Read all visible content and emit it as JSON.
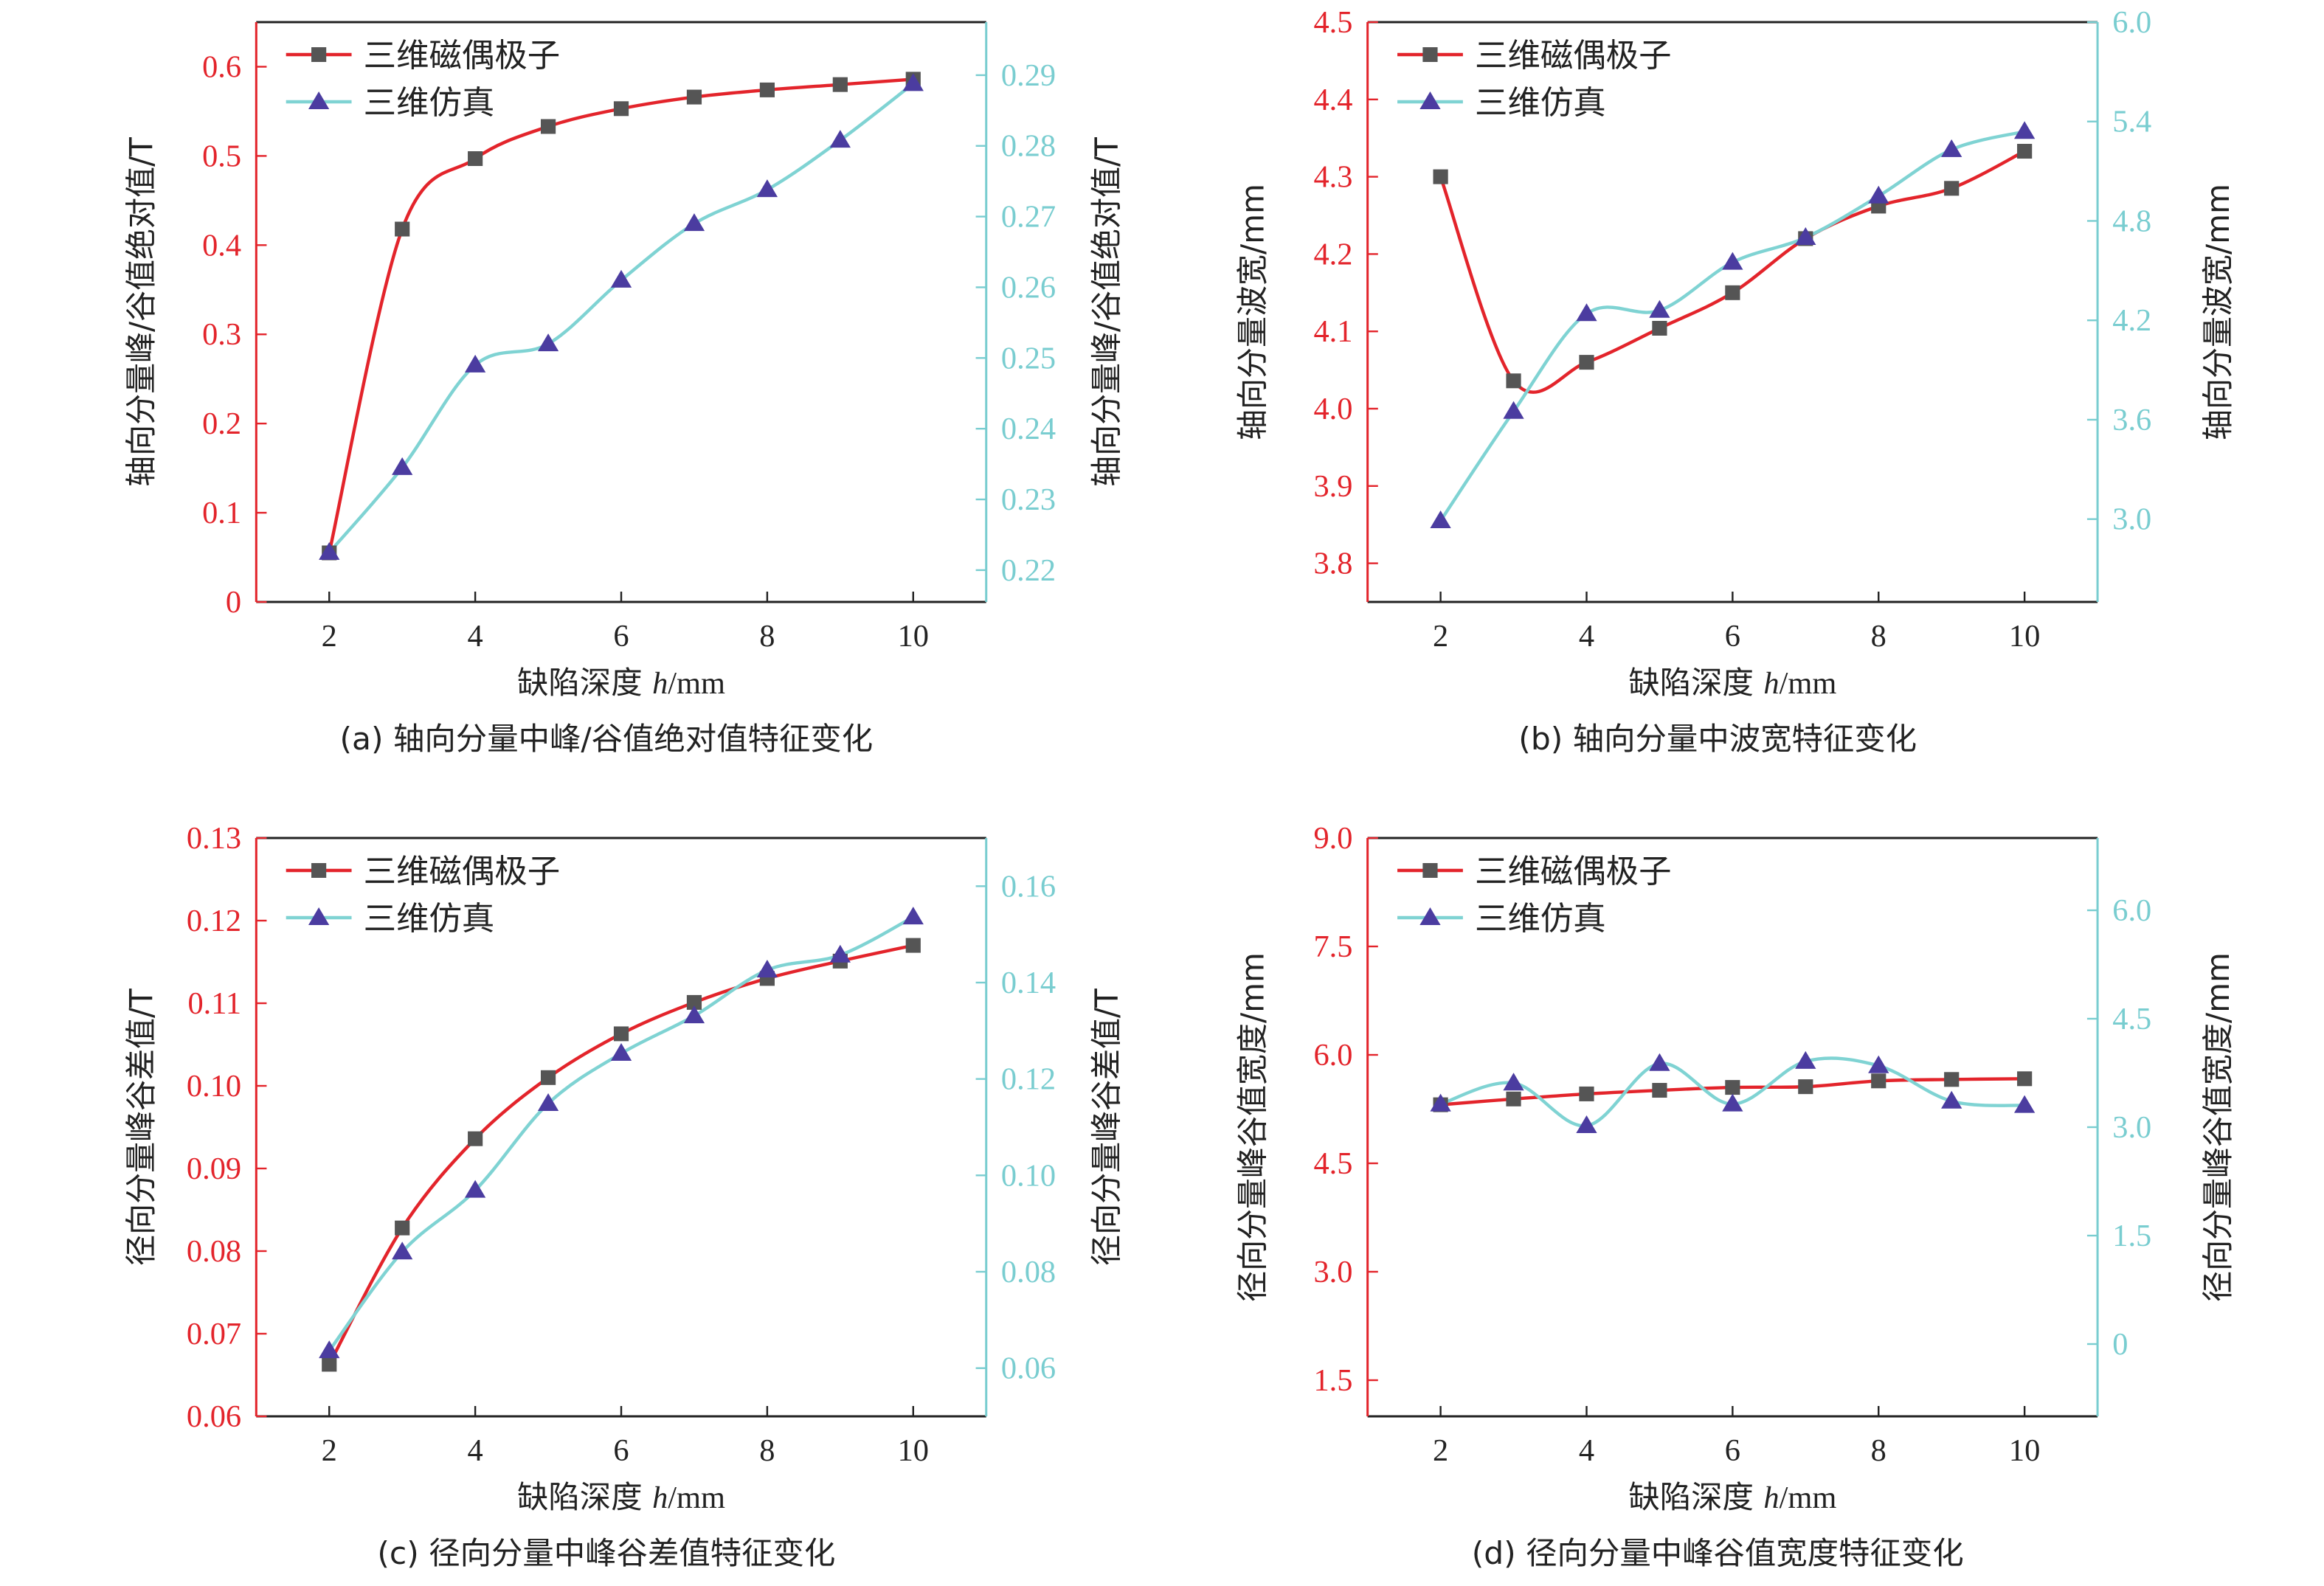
{
  "colors": {
    "series1_line": "#e3242b",
    "series1_marker": "#555555",
    "series2_line": "#7fd3d3",
    "series2_marker": "#4b3ca0",
    "left_axis": "#e3242b",
    "right_axis": "#79cdd0",
    "frame": "#222222"
  },
  "chart_data": [
    {
      "id": "a",
      "type": "line",
      "caption": "(a) 轴向分量中峰/谷值绝对值特征变化",
      "title": "",
      "xlabel_prefix": "缺陷深度 ",
      "xlabel_var": "h",
      "xlabel_suffix": "/mm",
      "ylabel": "轴向分量峰/谷值绝对值/T",
      "y2label": "轴向分量峰/谷值绝对值/T",
      "xlim": [
        1,
        11
      ],
      "xticks": [
        2,
        4,
        6,
        8,
        10
      ],
      "xtick_labels": [
        "2",
        "4",
        "6",
        "8",
        "10"
      ],
      "ylim": [
        0,
        0.65
      ],
      "yticks": [
        0,
        0.1,
        0.2,
        0.3,
        0.4,
        0.5,
        0.6
      ],
      "ytick_labels": [
        "0",
        "0.1",
        "0.2",
        "0.3",
        "0.4",
        "0.5",
        "0.6"
      ],
      "y2lim": [
        0.2155,
        0.2975
      ],
      "y2ticks": [
        0.22,
        0.23,
        0.24,
        0.25,
        0.26,
        0.27,
        0.28,
        0.29
      ],
      "y2tick_labels": [
        "0.22",
        "0.23",
        "0.24",
        "0.25",
        "0.26",
        "0.27",
        "0.28",
        "0.29"
      ],
      "grid": false,
      "legend_position": "top-left",
      "x": [
        2,
        3,
        4,
        5,
        6,
        7,
        8,
        9,
        10
      ],
      "series": [
        {
          "name": "三维磁偶极子",
          "axis": "left",
          "marker": "square",
          "values": [
            0.055,
            0.418,
            0.497,
            0.533,
            0.553,
            0.566,
            0.574,
            0.58,
            0.586
          ]
        },
        {
          "name": "三维仿真",
          "axis": "right",
          "marker": "triangle",
          "values": [
            0.2225,
            0.2345,
            0.249,
            0.252,
            0.261,
            0.269,
            0.2738,
            0.2808,
            0.2888
          ]
        }
      ]
    },
    {
      "id": "b",
      "type": "line",
      "caption": "(b) 轴向分量中波宽特征变化",
      "title": "",
      "xlabel_prefix": "缺陷深度 ",
      "xlabel_var": "h",
      "xlabel_suffix": "/mm",
      "ylabel": "轴向分量波宽/mm",
      "y2label": "轴向分量波宽/mm",
      "xlim": [
        1,
        11
      ],
      "xticks": [
        2,
        4,
        6,
        8,
        10
      ],
      "xtick_labels": [
        "2",
        "4",
        "6",
        "8",
        "10"
      ],
      "ylim": [
        3.75,
        4.5
      ],
      "yticks": [
        3.8,
        3.9,
        4.0,
        4.1,
        4.2,
        4.3,
        4.4,
        4.5
      ],
      "ytick_labels": [
        "3.8",
        "3.9",
        "4.0",
        "4.1",
        "4.2",
        "4.3",
        "4.4",
        "4.5"
      ],
      "y2lim": [
        2.5,
        6.0
      ],
      "y2ticks": [
        3.0,
        3.6,
        4.2,
        4.8,
        5.4,
        6.0
      ],
      "y2tick_labels": [
        "3.0",
        "3.6",
        "4.2",
        "4.8",
        "5.4",
        "6.0"
      ],
      "grid": false,
      "legend_position": "top-left",
      "x": [
        2,
        3,
        4,
        5,
        6,
        7,
        8,
        9,
        10
      ],
      "series": [
        {
          "name": "三维磁偶极子",
          "axis": "left",
          "marker": "square",
          "values": [
            4.3,
            4.036,
            4.06,
            4.104,
            4.15,
            4.22,
            4.262,
            4.285,
            4.333
          ]
        },
        {
          "name": "三维仿真",
          "axis": "right",
          "marker": "triangle",
          "values": [
            2.99,
            3.65,
            4.24,
            4.26,
            4.55,
            4.7,
            4.95,
            5.23,
            5.34
          ]
        }
      ]
    },
    {
      "id": "c",
      "type": "line",
      "caption": "(c) 径向分量中峰谷差值特征变化",
      "title": "",
      "xlabel_prefix": "缺陷深度 ",
      "xlabel_var": "h",
      "xlabel_suffix": "/mm",
      "ylabel": "径向分量峰谷差值/T",
      "y2label": "径向分量峰谷差值/T",
      "xlim": [
        1,
        11
      ],
      "xticks": [
        2,
        4,
        6,
        8,
        10
      ],
      "xtick_labels": [
        "2",
        "4",
        "6",
        "8",
        "10"
      ],
      "ylim": [
        0.06,
        0.13
      ],
      "yticks": [
        0.06,
        0.07,
        0.08,
        0.09,
        0.1,
        0.11,
        0.12,
        0.13
      ],
      "ytick_labels": [
        "0.06",
        "0.07",
        "0.08",
        "0.09",
        "0.10",
        "0.11",
        "0.12",
        "0.13"
      ],
      "y2lim": [
        0.05,
        0.17
      ],
      "y2ticks": [
        0.06,
        0.08,
        0.1,
        0.12,
        0.14,
        0.16
      ],
      "y2tick_labels": [
        "0.06",
        "0.08",
        "0.10",
        "0.12",
        "0.14",
        "0.16"
      ],
      "grid": false,
      "legend_position": "top-left",
      "x": [
        2,
        3,
        4,
        5,
        6,
        7,
        8,
        9,
        10
      ],
      "series": [
        {
          "name": "三维磁偶极子",
          "axis": "left",
          "marker": "square",
          "values": [
            0.0663,
            0.0828,
            0.0936,
            0.101,
            0.1063,
            0.1101,
            0.113,
            0.1151,
            0.117
          ]
        },
        {
          "name": "三维仿真",
          "axis": "right",
          "marker": "triangle",
          "values": [
            0.0636,
            0.0841,
            0.0969,
            0.1149,
            0.1253,
            0.1331,
            0.1426,
            0.1457,
            0.1536
          ]
        }
      ]
    },
    {
      "id": "d",
      "type": "line",
      "caption": "(d) 径向分量中峰谷值宽度特征变化",
      "title": "",
      "xlabel_prefix": "缺陷深度 ",
      "xlabel_var": "h",
      "xlabel_suffix": "/mm",
      "ylabel": "径向分量峰谷值宽度/mm",
      "y2label": "径向分量峰谷值宽度/mm",
      "xlim": [
        1,
        11
      ],
      "xticks": [
        2,
        4,
        6,
        8,
        10
      ],
      "xtick_labels": [
        "2",
        "4",
        "6",
        "8",
        "10"
      ],
      "ylim": [
        1.0,
        9.0
      ],
      "yticks": [
        1.5,
        3.0,
        4.5,
        6.0,
        7.5,
        9.0
      ],
      "ytick_labels": [
        "1.5",
        "3.0",
        "4.5",
        "6.0",
        "7.5",
        "9.0"
      ],
      "y2lim": [
        -1.0,
        7.0
      ],
      "y2ticks": [
        0,
        1.5,
        3.0,
        4.5,
        6.0
      ],
      "y2tick_labels": [
        "0",
        "1.5",
        "3.0",
        "4.5",
        "6.0"
      ],
      "grid": false,
      "legend_position": "top-left",
      "x": [
        2,
        3,
        4,
        5,
        6,
        7,
        8,
        9,
        10
      ],
      "series": [
        {
          "name": "三维磁偶极子",
          "axis": "left",
          "marker": "square",
          "values": [
            5.31,
            5.39,
            5.46,
            5.51,
            5.55,
            5.56,
            5.64,
            5.66,
            5.67
          ]
        },
        {
          "name": "三维仿真",
          "axis": "right",
          "marker": "triangle",
          "values": [
            3.32,
            3.61,
            3.02,
            3.88,
            3.32,
            3.91,
            3.85,
            3.36,
            3.3
          ]
        }
      ]
    }
  ]
}
